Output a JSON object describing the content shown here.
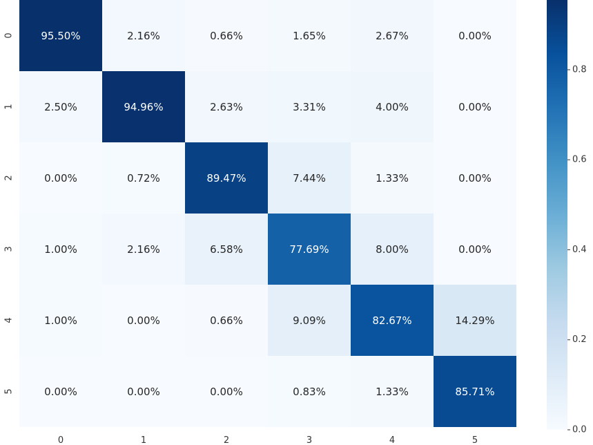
{
  "chart_data": {
    "type": "heatmap",
    "x_categories": [
      "0",
      "1",
      "2",
      "3",
      "4",
      "5"
    ],
    "y_categories": [
      "0",
      "1",
      "2",
      "3",
      "4",
      "5"
    ],
    "values": [
      [
        0.955,
        0.0216,
        0.0066,
        0.0165,
        0.0267,
        0.0
      ],
      [
        0.025,
        0.9496,
        0.0263,
        0.0331,
        0.04,
        0.0
      ],
      [
        0.0,
        0.0072,
        0.8947,
        0.0744,
        0.0133,
        0.0
      ],
      [
        0.01,
        0.0216,
        0.0658,
        0.7769,
        0.08,
        0.0
      ],
      [
        0.01,
        0.0,
        0.0066,
        0.0909,
        0.8267,
        0.1429
      ],
      [
        0.0,
        0.0,
        0.0,
        0.0083,
        0.0133,
        0.8571
      ]
    ],
    "annotations": [
      [
        "95.50%",
        "2.16%",
        "0.66%",
        "1.65%",
        "2.67%",
        "0.00%"
      ],
      [
        "2.50%",
        "94.96%",
        "2.63%",
        "3.31%",
        "4.00%",
        "0.00%"
      ],
      [
        "0.00%",
        "0.72%",
        "89.47%",
        "7.44%",
        "1.33%",
        "0.00%"
      ],
      [
        "1.00%",
        "2.16%",
        "6.58%",
        "77.69%",
        "8.00%",
        "0.00%"
      ],
      [
        "1.00%",
        "0.00%",
        "0.66%",
        "9.09%",
        "82.67%",
        "14.29%"
      ],
      [
        "0.00%",
        "0.00%",
        "0.00%",
        "0.83%",
        "1.33%",
        "85.71%"
      ]
    ],
    "colorbar": {
      "range": [
        0.0,
        0.955
      ],
      "ticks": [
        "0.0",
        "0.2",
        "0.4",
        "0.6",
        "0.8"
      ],
      "tick_values": [
        0.0,
        0.2,
        0.4,
        0.6,
        0.8
      ]
    },
    "colormap": "Blues",
    "colors": {
      "low": "#f7fbff",
      "high": "#08306b",
      "text_dark": "#262626",
      "text_light": "#ffffff"
    },
    "grid": false
  }
}
